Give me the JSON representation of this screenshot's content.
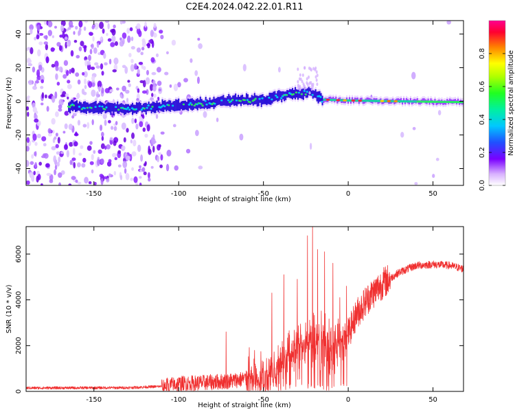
{
  "figure_title": "C2E4.2024.042.22.01.R11",
  "chart_data": [
    {
      "type": "heatmap",
      "name": "spectrogram",
      "xlabel": "Height of straight line (km)",
      "ylabel": "Frequency (Hz)",
      "xlim": [
        -190,
        68
      ],
      "ylim": [
        -50,
        48
      ],
      "xticks": [
        -150,
        -100,
        -50,
        0,
        50
      ],
      "xtick_labels": [
        "-150",
        "-100",
        "-50",
        "0",
        "50"
      ],
      "yticks": [
        -40,
        -20,
        0,
        20,
        40
      ],
      "ytick_labels": [
        "-40",
        "-20",
        "0",
        "20",
        "40"
      ],
      "colorbar": {
        "label": "Normalized spectral amplitude",
        "range": [
          0,
          1
        ],
        "ticks": [
          0.0,
          0.2,
          0.4,
          0.6,
          0.8
        ],
        "tick_labels": [
          "0.0",
          "0.2",
          "0.4",
          "0.6",
          "0.8"
        ]
      },
      "signal_track": [
        {
          "x": -162,
          "f": -3.0
        },
        {
          "x": -135,
          "f": -4.5
        },
        {
          "x": -110,
          "f": -3.0
        },
        {
          "x": -85,
          "f": -1.5
        },
        {
          "x": -70,
          "f": 0.5
        },
        {
          "x": -50,
          "f": 1.0
        },
        {
          "x": -35,
          "f": 4.0
        },
        {
          "x": -22,
          "f": 5.5
        },
        {
          "x": -15,
          "f": 1.0
        },
        {
          "x": 0,
          "f": 0.5
        },
        {
          "x": 30,
          "f": 0.0
        },
        {
          "x": 68,
          "f": -0.5
        }
      ],
      "noise_region": [
        -190,
        -110
      ]
    },
    {
      "type": "line",
      "name": "snr",
      "xlabel": "Height of straight line (km)",
      "ylabel": "SNR (10 * v/v)",
      "xlim": [
        -190,
        68
      ],
      "ylim": [
        0,
        7200
      ],
      "xticks": [
        -150,
        -100,
        -50,
        0,
        50
      ],
      "xtick_labels": [
        "-150",
        "-100",
        "-50",
        "0",
        "50"
      ],
      "yticks": [
        0,
        2000,
        4000,
        6000
      ],
      "ytick_labels": [
        "0",
        "2000",
        "4000",
        "6000"
      ],
      "color": "#f03030",
      "envelope": [
        {
          "x": -190,
          "y": 150
        },
        {
          "x": -130,
          "y": 160
        },
        {
          "x": -110,
          "y": 220
        },
        {
          "x": -100,
          "y": 330
        },
        {
          "x": -85,
          "y": 380
        },
        {
          "x": -70,
          "y": 450
        },
        {
          "x": -55,
          "y": 600
        },
        {
          "x": -45,
          "y": 900
        },
        {
          "x": -38,
          "y": 1400
        },
        {
          "x": -30,
          "y": 1900
        },
        {
          "x": -22,
          "y": 2300
        },
        {
          "x": -15,
          "y": 2200
        },
        {
          "x": -8,
          "y": 2000
        },
        {
          "x": 0,
          "y": 2500
        },
        {
          "x": 5,
          "y": 3400
        },
        {
          "x": 12,
          "y": 4100
        },
        {
          "x": 20,
          "y": 4700
        },
        {
          "x": 30,
          "y": 5200
        },
        {
          "x": 40,
          "y": 5500
        },
        {
          "x": 50,
          "y": 5550
        },
        {
          "x": 60,
          "y": 5500
        },
        {
          "x": 68,
          "y": 5350
        }
      ],
      "peaks": [
        {
          "x": -72,
          "y": 2600
        },
        {
          "x": -45,
          "y": 4300
        },
        {
          "x": -38,
          "y": 5100
        },
        {
          "x": -30,
          "y": 4900
        },
        {
          "x": -24,
          "y": 6800
        },
        {
          "x": -21,
          "y": 7200
        },
        {
          "x": -18,
          "y": 6200
        },
        {
          "x": -14,
          "y": 6100
        },
        {
          "x": -9,
          "y": 5600
        },
        {
          "x": -5,
          "y": 4100
        },
        {
          "x": -1,
          "y": 4600
        }
      ]
    }
  ]
}
